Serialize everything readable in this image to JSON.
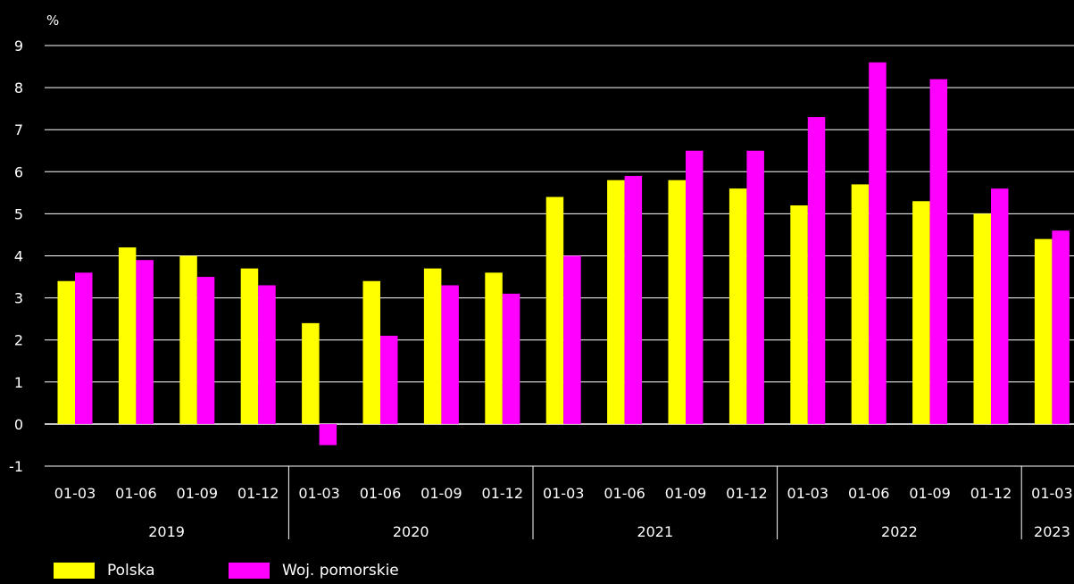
{
  "chart_data": {
    "type": "bar",
    "unit_label": "%",
    "ylim": [
      -1,
      9
    ],
    "yticks": [
      -1,
      0,
      1,
      2,
      3,
      4,
      5,
      6,
      7,
      8,
      9
    ],
    "grid": true,
    "legend_position": "bottom-left",
    "groups": [
      {
        "label": "2019",
        "categories": [
          "01-03",
          "01-06",
          "01-09",
          "01-12"
        ]
      },
      {
        "label": "2020",
        "categories": [
          "01-03",
          "01-06",
          "01-09",
          "01-12"
        ]
      },
      {
        "label": "2021",
        "categories": [
          "01-03",
          "01-06",
          "01-09",
          "01-12"
        ]
      },
      {
        "label": "2022",
        "categories": [
          "01-03",
          "01-06",
          "01-09",
          "01-12"
        ]
      },
      {
        "label": "2023",
        "categories": [
          "01-03"
        ]
      }
    ],
    "series": [
      {
        "name": "Polska",
        "color": "#ffff00",
        "values": [
          3.4,
          4.2,
          4.0,
          3.7,
          2.4,
          3.4,
          3.7,
          3.6,
          5.4,
          5.8,
          5.8,
          5.6,
          5.2,
          5.7,
          5.3,
          5.0,
          4.4
        ]
      },
      {
        "name": "Woj. pomorskie",
        "color": "#ff00ff",
        "values": [
          3.6,
          3.9,
          3.5,
          3.3,
          -0.5,
          2.1,
          3.3,
          3.1,
          4.0,
          5.9,
          6.5,
          6.5,
          7.3,
          8.6,
          8.2,
          5.6,
          4.6
        ]
      }
    ]
  }
}
